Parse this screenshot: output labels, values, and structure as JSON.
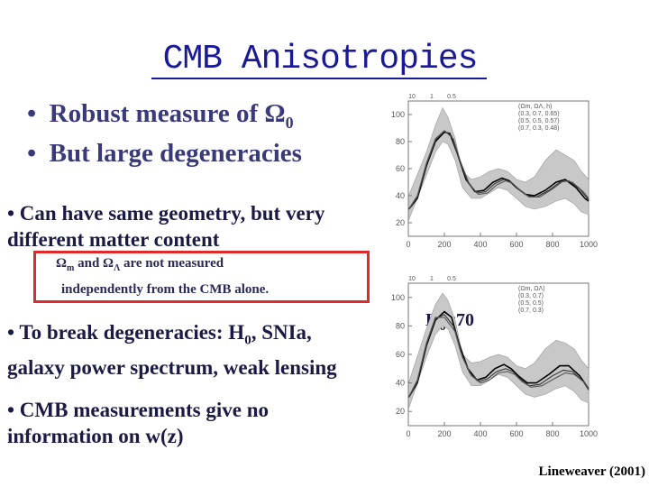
{
  "slide": {
    "title": "CMB Anisotropies",
    "bullets_top": [
      {
        "bullet": "•",
        "text": "Robust measure of ",
        "symbol": "Ω",
        "sub": "0"
      },
      {
        "bullet": "•",
        "text": "But large degeneracies",
        "symbol": "",
        "sub": ""
      }
    ],
    "geometry_line1": "• Can have same geometry, but very",
    "geometry_line2": "different matter content",
    "box": {
      "omega": "Ω",
      "sub_m": "m",
      "and": " and ",
      "sub_lambda": "Λ",
      "rest": " are not measured",
      "line2": "independently from the CMB alone."
    },
    "break_line1_pre": "• To break degeneracies: H",
    "break_line1_sub": "0",
    "break_line1_post": ", SNIa,",
    "break_line2": "galaxy power spectrum, weak lensing",
    "cmb_line1": "• CMB measurements give  no",
    "cmb_line2": "information  on w(z)",
    "h0_note_pre": "H",
    "h0_note_sub": "0",
    "h0_note_post": "=70",
    "citation": "Lineweaver (2001)"
  },
  "chart_data": [
    {
      "type": "line",
      "x_ticks": [
        "0",
        "200",
        "400",
        "600",
        "800",
        "1000"
      ],
      "y_ticks": [
        "20",
        "40",
        "60",
        "80",
        "100"
      ],
      "top_ticks": [
        "10",
        "1",
        "0.5"
      ],
      "xlim": [
        0,
        1000
      ],
      "ylim": [
        10,
        110
      ],
      "legend_header": "(Ωm, ΩΛ, h)",
      "legend_entries": [
        "(0.3, 0.7, 0.65)",
        "(0.5, 0.5, 0.57)",
        "(0.7, 0.3, 0.48)"
      ],
      "series": [
        {
          "values": [
            [
              2,
              30
            ],
            [
              50,
              38
            ],
            [
              100,
              62
            ],
            [
              150,
              80
            ],
            [
              200,
              87
            ],
            [
              230,
              86
            ],
            [
              270,
              72
            ],
            [
              320,
              52
            ],
            [
              370,
              43
            ],
            [
              420,
              44
            ],
            [
              470,
              50
            ],
            [
              520,
              53
            ],
            [
              560,
              51
            ],
            [
              600,
              46
            ],
            [
              650,
              41
            ],
            [
              700,
              40
            ],
            [
              760,
              44
            ],
            [
              820,
              50
            ],
            [
              870,
              52
            ],
            [
              930,
              46
            ],
            [
              980,
              38
            ],
            [
              1000,
              36
            ]
          ]
        },
        {
          "values": [
            [
              2,
              30
            ],
            [
              50,
              39
            ],
            [
              100,
              63
            ],
            [
              150,
              81
            ],
            [
              200,
              88
            ],
            [
              240,
              84
            ],
            [
              280,
              68
            ],
            [
              330,
              50
            ],
            [
              380,
              42
            ],
            [
              430,
              43
            ],
            [
              480,
              49
            ],
            [
              530,
              52
            ],
            [
              570,
              50
            ],
            [
              610,
              45
            ],
            [
              660,
              40
            ],
            [
              710,
              39
            ],
            [
              780,
              44
            ],
            [
              840,
              50
            ],
            [
              890,
              51
            ],
            [
              950,
              45
            ],
            [
              1000,
              37
            ]
          ]
        },
        {
          "values": [
            [
              2,
              30
            ],
            [
              50,
              40
            ],
            [
              100,
              64
            ],
            [
              150,
              82
            ],
            [
              200,
              88
            ],
            [
              250,
              82
            ],
            [
              290,
              65
            ],
            [
              340,
              48
            ],
            [
              390,
              41
            ],
            [
              440,
              42
            ],
            [
              490,
              48
            ],
            [
              540,
              51
            ],
            [
              580,
              49
            ],
            [
              620,
              44
            ],
            [
              670,
              39
            ],
            [
              730,
              39
            ],
            [
              800,
              45
            ],
            [
              860,
              51
            ],
            [
              910,
              50
            ],
            [
              970,
              43
            ],
            [
              1000,
              38
            ]
          ]
        }
      ],
      "band": {
        "upper": [
          [
            2,
            40
          ],
          [
            100,
            72
          ],
          [
            150,
            92
          ],
          [
            190,
            105
          ],
          [
            220,
            98
          ],
          [
            260,
            82
          ],
          [
            300,
            58
          ],
          [
            350,
            52
          ],
          [
            400,
            54
          ],
          [
            450,
            58
          ],
          [
            500,
            60
          ],
          [
            550,
            58
          ],
          [
            600,
            52
          ],
          [
            650,
            50
          ],
          [
            700,
            54
          ],
          [
            760,
            66
          ],
          [
            820,
            74
          ],
          [
            870,
            70
          ],
          [
            920,
            66
          ],
          [
            960,
            58
          ],
          [
            1000,
            52
          ]
        ],
        "lower": [
          [
            2,
            22
          ],
          [
            100,
            55
          ],
          [
            150,
            72
          ],
          [
            190,
            80
          ],
          [
            220,
            78
          ],
          [
            260,
            66
          ],
          [
            300,
            46
          ],
          [
            350,
            38
          ],
          [
            400,
            38
          ],
          [
            450,
            42
          ],
          [
            500,
            46
          ],
          [
            550,
            44
          ],
          [
            600,
            38
          ],
          [
            650,
            32
          ],
          [
            700,
            30
          ],
          [
            760,
            32
          ],
          [
            820,
            36
          ],
          [
            870,
            38
          ],
          [
            920,
            34
          ],
          [
            960,
            28
          ],
          [
            1000,
            26
          ]
        ]
      }
    },
    {
      "type": "line",
      "x_ticks": [
        "0",
        "200",
        "400",
        "600",
        "800",
        "1000"
      ],
      "y_ticks": [
        "20",
        "40",
        "60",
        "80",
        "100"
      ],
      "top_ticks": [
        "10",
        "1",
        "0.5"
      ],
      "xlim": [
        0,
        1000
      ],
      "ylim": [
        10,
        110
      ],
      "legend_header": "(Ωm, ΩΛ)",
      "legend_entries": [
        "(0.3, 0.7)",
        "(0.5, 0.5)",
        "(0.7, 0.3)"
      ],
      "series": [
        {
          "values": [
            [
              2,
              30
            ],
            [
              50,
              40
            ],
            [
              100,
              66
            ],
            [
              150,
              84
            ],
            [
              200,
              90
            ],
            [
              240,
              86
            ],
            [
              280,
              68
            ],
            [
              330,
              50
            ],
            [
              380,
              42
            ],
            [
              430,
              44
            ],
            [
              480,
              50
            ],
            [
              530,
              53
            ],
            [
              570,
              50
            ],
            [
              610,
              45
            ],
            [
              660,
              40
            ],
            [
              710,
              40
            ],
            [
              780,
              46
            ],
            [
              840,
              52
            ],
            [
              890,
              52
            ],
            [
              950,
              45
            ],
            [
              1000,
              36
            ]
          ]
        },
        {
          "values": [
            [
              2,
              30
            ],
            [
              50,
              41
            ],
            [
              100,
              67
            ],
            [
              150,
              85
            ],
            [
              200,
              88
            ],
            [
              250,
              80
            ],
            [
              290,
              62
            ],
            [
              340,
              47
            ],
            [
              390,
              41
            ],
            [
              440,
              43
            ],
            [
              490,
              48
            ],
            [
              540,
              50
            ],
            [
              580,
              48
            ],
            [
              620,
              43
            ],
            [
              670,
              38
            ],
            [
              730,
              39
            ],
            [
              800,
              45
            ],
            [
              860,
              49
            ],
            [
              910,
              48
            ],
            [
              970,
              41
            ],
            [
              1000,
              35
            ]
          ]
        },
        {
          "values": [
            [
              2,
              30
            ],
            [
              50,
              42
            ],
            [
              100,
              68
            ],
            [
              150,
              86
            ],
            [
              200,
              86
            ],
            [
              260,
              76
            ],
            [
              300,
              58
            ],
            [
              350,
              45
            ],
            [
              400,
              40
            ],
            [
              450,
              42
            ],
            [
              500,
              47
            ],
            [
              550,
              48
            ],
            [
              590,
              46
            ],
            [
              630,
              41
            ],
            [
              680,
              37
            ],
            [
              740,
              38
            ],
            [
              810,
              43
            ],
            [
              870,
              47
            ],
            [
              920,
              46
            ],
            [
              980,
              40
            ],
            [
              1000,
              36
            ]
          ]
        }
      ],
      "band": {
        "upper": [
          [
            2,
            40
          ],
          [
            100,
            78
          ],
          [
            150,
            95
          ],
          [
            190,
            103
          ],
          [
            220,
            98
          ],
          [
            260,
            84
          ],
          [
            300,
            60
          ],
          [
            350,
            54
          ],
          [
            400,
            55
          ],
          [
            450,
            58
          ],
          [
            500,
            60
          ],
          [
            550,
            58
          ],
          [
            600,
            52
          ],
          [
            650,
            50
          ],
          [
            700,
            54
          ],
          [
            760,
            64
          ],
          [
            820,
            70
          ],
          [
            870,
            68
          ],
          [
            920,
            64
          ],
          [
            960,
            56
          ],
          [
            1000,
            50
          ]
        ],
        "lower": [
          [
            2,
            22
          ],
          [
            100,
            58
          ],
          [
            150,
            74
          ],
          [
            190,
            80
          ],
          [
            220,
            78
          ],
          [
            260,
            66
          ],
          [
            300,
            48
          ],
          [
            350,
            38
          ],
          [
            400,
            38
          ],
          [
            450,
            42
          ],
          [
            500,
            46
          ],
          [
            550,
            44
          ],
          [
            600,
            38
          ],
          [
            650,
            32
          ],
          [
            700,
            30
          ],
          [
            760,
            32
          ],
          [
            820,
            36
          ],
          [
            870,
            38
          ],
          [
            920,
            34
          ],
          [
            960,
            28
          ],
          [
            1000,
            26
          ]
        ]
      }
    }
  ]
}
